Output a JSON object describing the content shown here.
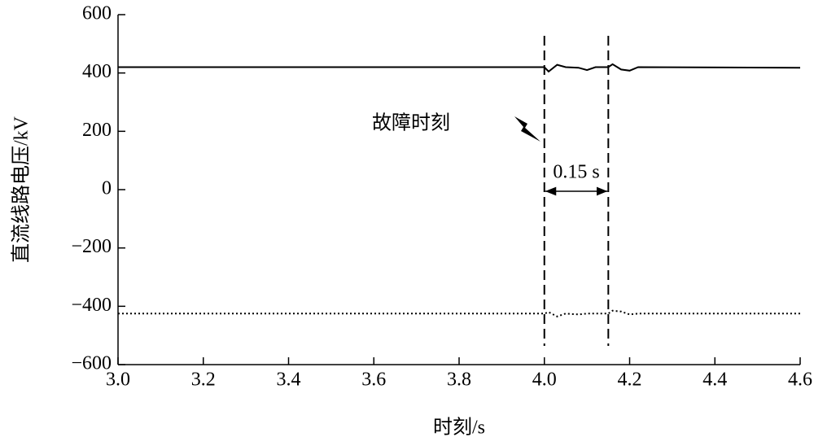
{
  "chart_data": {
    "type": "line",
    "ylabel": "直流线路电压/kV",
    "xlabel": "时刻/s",
    "x": [
      3.0,
      4.0,
      4.01,
      4.03,
      4.05,
      4.08,
      4.1,
      4.12,
      4.15,
      4.16,
      4.18,
      4.2,
      4.22,
      4.6
    ],
    "series": [
      {
        "color": "#000000",
        "dash": "solid",
        "values": [
          420,
          420,
          405,
          428,
          420,
          418,
          410,
          420,
          420,
          430,
          412,
          408,
          420,
          418
        ]
      },
      {
        "color": "#000000",
        "dash": "dotted",
        "values": [
          -425,
          -425,
          -420,
          -435,
          -425,
          -428,
          -425,
          -425,
          -425,
          -415,
          -418,
          -428,
          -425,
          -425
        ]
      }
    ],
    "xlim": [
      3.0,
      4.6
    ],
    "ylim": [
      -600,
      600
    ],
    "xticks": [
      {
        "value": 3,
        "label": "3.0"
      },
      3.2,
      3.4,
      3.6,
      3.8,
      {
        "value": 4,
        "label": "4.0"
      },
      4.2,
      4.4,
      4.6
    ],
    "yticks": [
      {
        "value": -600,
        "label": "−600"
      },
      {
        "value": -400,
        "label": "−400"
      },
      {
        "value": -200,
        "label": "−200"
      },
      0,
      200,
      400,
      600
    ],
    "markers": [
      4.0,
      4.15
    ],
    "fault_label": "故障时刻",
    "interval_label": "0.15 s"
  }
}
